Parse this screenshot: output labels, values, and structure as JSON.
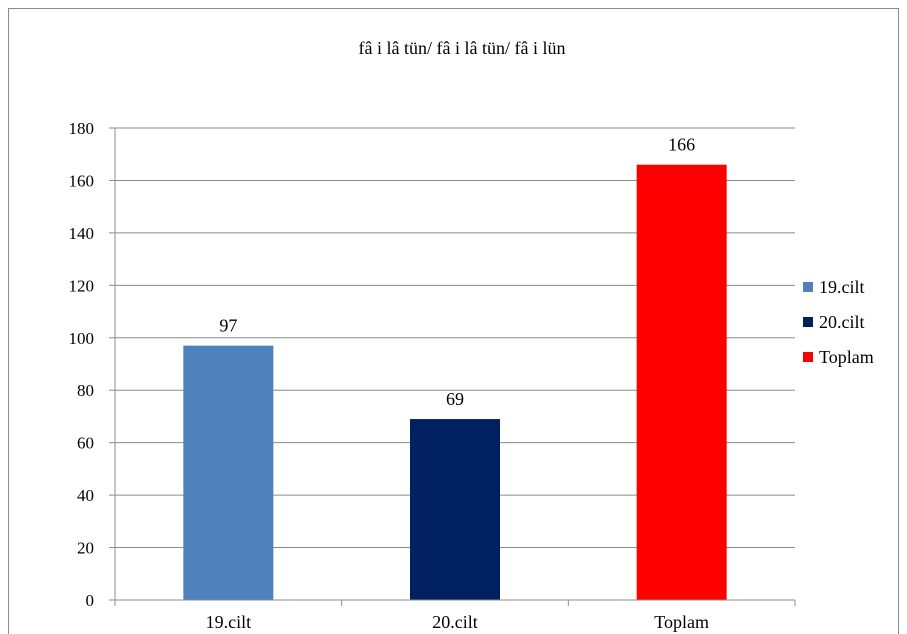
{
  "chart_data": {
    "type": "bar",
    "title": "fâ i lâ tün/ fâ i lâ tün/ fâ i lün",
    "categories": [
      "19.cilt",
      "20.cilt",
      "Toplam"
    ],
    "series": [
      {
        "name": "19.cilt",
        "values": [
          97,
          null,
          null
        ],
        "color": "#4f81bd"
      },
      {
        "name": "20.cilt",
        "values": [
          null,
          69,
          null
        ],
        "color": "#002060"
      },
      {
        "name": "Toplam",
        "values": [
          null,
          null,
          166
        ],
        "color": "#ff0000"
      }
    ],
    "values": [
      97,
      69,
      166
    ],
    "data_labels": [
      "97",
      "69",
      "166"
    ],
    "ylim": [
      0,
      180
    ],
    "yticks": [
      0,
      20,
      40,
      60,
      80,
      100,
      120,
      140,
      160,
      180
    ],
    "grid": true,
    "legend": {
      "position": "right",
      "entries": [
        {
          "label": "19.cilt",
          "color": "#4f81bd"
        },
        {
          "label": "20.cilt",
          "color": "#002060"
        },
        {
          "label": "Toplam",
          "color": "#ff0000"
        }
      ]
    }
  }
}
